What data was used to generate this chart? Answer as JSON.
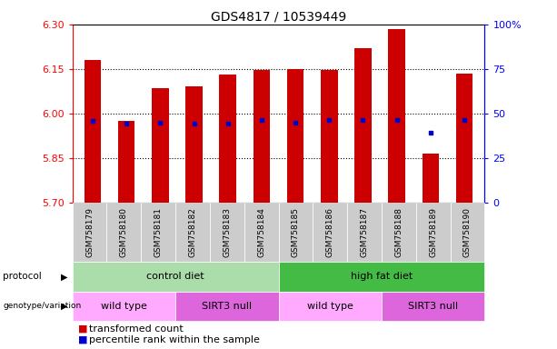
{
  "title": "GDS4817 / 10539449",
  "samples": [
    "GSM758179",
    "GSM758180",
    "GSM758181",
    "GSM758182",
    "GSM758183",
    "GSM758184",
    "GSM758185",
    "GSM758186",
    "GSM758187",
    "GSM758188",
    "GSM758189",
    "GSM758190"
  ],
  "bar_bottom": 5.7,
  "bar_tops": [
    6.18,
    5.975,
    6.085,
    6.09,
    6.13,
    6.145,
    6.148,
    6.145,
    6.22,
    6.285,
    5.865,
    6.135
  ],
  "blue_dots": [
    5.975,
    5.965,
    5.968,
    5.965,
    5.967,
    5.978,
    5.968,
    5.978,
    5.977,
    5.977,
    5.935,
    5.977
  ],
  "ylim_left": [
    5.7,
    6.3
  ],
  "yticks_left": [
    5.7,
    5.85,
    6.0,
    6.15,
    6.3
  ],
  "yticks_right": [
    0,
    25,
    50,
    75,
    100
  ],
  "bar_color": "#cc0000",
  "dot_color": "#0000cc",
  "bar_width": 0.5,
  "protocol_labels": [
    "control diet",
    "high fat diet"
  ],
  "protocol_ranges": [
    [
      0,
      6
    ],
    [
      6,
      12
    ]
  ],
  "protocol_colors": [
    "#aaddaa",
    "#44bb44"
  ],
  "genotype_labels": [
    "wild type",
    "SIRT3 null",
    "wild type",
    "SIRT3 null"
  ],
  "genotype_ranges": [
    [
      0,
      3
    ],
    [
      3,
      6
    ],
    [
      6,
      9
    ],
    [
      9,
      12
    ]
  ],
  "genotype_colors": [
    "#ffaaff",
    "#dd66dd",
    "#ffaaff",
    "#dd66dd"
  ],
  "legend_items": [
    {
      "label": "transformed count",
      "color": "#cc0000"
    },
    {
      "label": "percentile rank within the sample",
      "color": "#0000cc"
    }
  ]
}
